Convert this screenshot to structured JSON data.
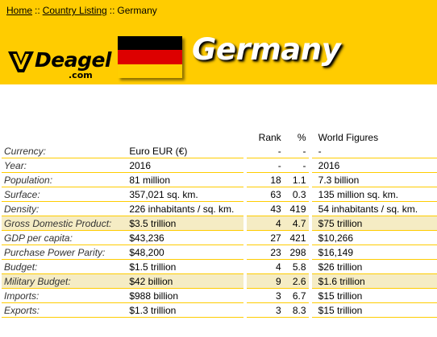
{
  "breadcrumb": {
    "home": "Home",
    "sep": "::",
    "listing": "Country Listing",
    "current": "Germany"
  },
  "logo": {
    "name": "Deagel",
    "sub": ".com"
  },
  "country": {
    "name": "Germany",
    "flag_colors": [
      "#000000",
      "#dd0000",
      "#ffce00"
    ]
  },
  "accent": "#ffcc00",
  "table": {
    "headers": {
      "rank": "Rank",
      "pct": "%",
      "world": "World Figures"
    },
    "rows": [
      {
        "label": "Currency:",
        "value": "Euro EUR (€)",
        "rank": "-",
        "pct": "-",
        "world": "-"
      },
      {
        "label": "Year:",
        "value": "2016",
        "rank": "-",
        "pct": "-",
        "world": "2016"
      },
      {
        "label": "Population:",
        "value": "81 million",
        "rank": "18",
        "pct": "1.1",
        "world": "7.3 billion"
      },
      {
        "label": "Surface:",
        "value": "357,021 sq. km.",
        "rank": "63",
        "pct": "0.3",
        "world": "135 million sq. km."
      },
      {
        "label": "Density:",
        "value": "226 inhabitants / sq. km.",
        "rank": "43",
        "pct": "419",
        "world": "54 inhabitants / sq. km."
      },
      {
        "label": "Gross Domestic Product:",
        "value": "$3.5 trillion",
        "rank": "4",
        "pct": "4.7",
        "world": "$75 trillion",
        "highlight": true
      },
      {
        "label": "GDP per capita:",
        "value": "$43,236",
        "rank": "27",
        "pct": "421",
        "world": "$10,266"
      },
      {
        "label": "Purchase Power Parity:",
        "value": "$48,200",
        "rank": "23",
        "pct": "298",
        "world": "$16,149"
      },
      {
        "label": "Budget:",
        "value": "$1.5 trillion",
        "rank": "4",
        "pct": "5.8",
        "world": "$26 trillion"
      },
      {
        "label": "Military Budget:",
        "value": "$42 billion",
        "rank": "9",
        "pct": "2.6",
        "world": "$1.6 trillion",
        "highlight": true
      },
      {
        "label": "Imports:",
        "value": "$988 billion",
        "rank": "3",
        "pct": "6.7",
        "world": "$15 trillion"
      },
      {
        "label": "Exports:",
        "value": "$1.3 trillion",
        "rank": "3",
        "pct": "8.3",
        "world": "$15 trillion"
      }
    ]
  }
}
